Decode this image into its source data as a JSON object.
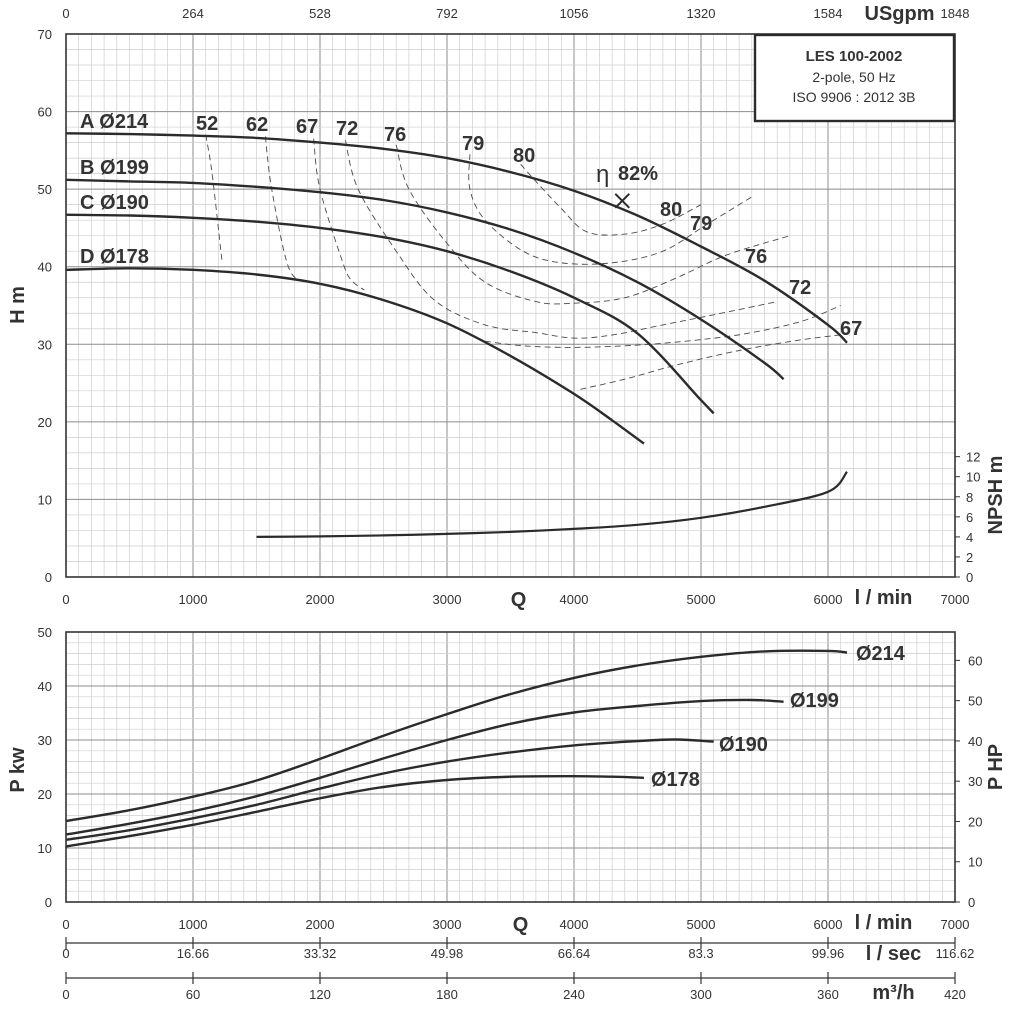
{
  "chart_data": [
    {
      "type": "line",
      "title": "LES 100-2002",
      "subtitle_lines": [
        "2-pole, 50 Hz",
        "ISO 9906 : 2012 3B"
      ],
      "xlabel": "Q",
      "x_unit": "l / min",
      "xlim": [
        0,
        7000
      ],
      "x_ticks": [
        0,
        1000,
        2000,
        3000,
        4000,
        5000,
        6000,
        7000
      ],
      "top_axis": {
        "unit": "USgpm",
        "ticks": [
          "0",
          "264",
          "528",
          "792",
          "1056",
          "1320",
          "1584",
          "1848"
        ]
      },
      "ylabel": "H m",
      "ylim": [
        0,
        70
      ],
      "y_ticks": [
        0,
        10,
        20,
        30,
        40,
        50,
        60,
        70
      ],
      "y2label": "NPSH m",
      "y2_ticks": [
        0,
        2,
        4,
        6,
        8,
        10,
        12
      ],
      "series": [
        {
          "name": "A Ø214",
          "x": [
            0,
            500,
            1000,
            1500,
            2000,
            2500,
            3000,
            3500,
            4000,
            4500,
            5000,
            5500,
            6000,
            6150
          ],
          "y": [
            57.2,
            57.1,
            56.9,
            56.6,
            56.0,
            55.2,
            54.0,
            52.2,
            49.8,
            46.6,
            42.6,
            38.2,
            32.5,
            30.2
          ]
        },
        {
          "name": "B Ø199",
          "x": [
            0,
            500,
            1000,
            1500,
            2000,
            2500,
            3000,
            3500,
            4000,
            4500,
            5000,
            5500,
            5650
          ],
          "y": [
            51.2,
            51.0,
            50.8,
            50.3,
            49.6,
            48.6,
            47.0,
            44.8,
            41.8,
            38.0,
            33.2,
            27.6,
            25.5
          ]
        },
        {
          "name": "C Ø190",
          "x": [
            0,
            500,
            1000,
            1500,
            2000,
            2500,
            3000,
            3500,
            4000,
            4500,
            5000,
            5100
          ],
          "y": [
            46.7,
            46.6,
            46.3,
            45.8,
            45.0,
            43.8,
            42.0,
            39.4,
            36.0,
            31.4,
            22.8,
            21.1
          ]
        },
        {
          "name": "D Ø178",
          "x": [
            0,
            500,
            1000,
            1500,
            2000,
            2500,
            3000,
            3500,
            4000,
            4300,
            4550
          ],
          "y": [
            39.6,
            39.8,
            39.6,
            39.0,
            37.8,
            35.7,
            32.7,
            28.5,
            23.6,
            20.2,
            17.2
          ]
        },
        {
          "name": "NPSH",
          "axis": "right",
          "x": [
            1500,
            2000,
            2500,
            3000,
            3500,
            4000,
            4500,
            5000,
            5500,
            6000,
            6150
          ],
          "y": [
            4.0,
            4.05,
            4.15,
            4.3,
            4.5,
            4.8,
            5.2,
            5.9,
            7.0,
            8.5,
            10.5
          ]
        }
      ],
      "efficiency_labels": [
        "52",
        "62",
        "67",
        "72",
        "76",
        "79",
        "80",
        "80",
        "79",
        "76",
        "72",
        "67"
      ],
      "best_efficiency": {
        "label": "η",
        "value": "82%",
        "x": 4380,
        "y": 48.5
      },
      "grid": true
    },
    {
      "type": "line",
      "xlabel": "Q",
      "x_unit": "l / min",
      "xlim": [
        0,
        7000
      ],
      "x_ticks": [
        0,
        1000,
        2000,
        3000,
        4000,
        5000,
        6000,
        7000
      ],
      "ylabel": "P kw",
      "ylim": [
        0,
        50
      ],
      "y_ticks": [
        0,
        10,
        20,
        30,
        40,
        50
      ],
      "y2label": "P HP",
      "y2_ticks": [
        0,
        10,
        20,
        30,
        40,
        50,
        60
      ],
      "series": [
        {
          "name": "Ø214",
          "x": [
            0,
            500,
            1000,
            1500,
            2000,
            2500,
            3000,
            3500,
            4000,
            4500,
            5000,
            5500,
            6000,
            6150
          ],
          "y": [
            15.0,
            17.0,
            19.5,
            22.5,
            26.5,
            30.8,
            34.8,
            38.5,
            41.5,
            43.8,
            45.4,
            46.4,
            46.5,
            46.2
          ]
        },
        {
          "name": "Ø199",
          "x": [
            0,
            500,
            1000,
            1500,
            2000,
            2500,
            3000,
            3500,
            4000,
            4500,
            5000,
            5400,
            5650
          ],
          "y": [
            12.5,
            14.5,
            16.8,
            19.6,
            23.0,
            26.6,
            30.0,
            33.0,
            35.1,
            36.3,
            37.2,
            37.4,
            37.1
          ]
        },
        {
          "name": "Ø190",
          "x": [
            0,
            500,
            1000,
            1500,
            2000,
            2500,
            3000,
            3500,
            4000,
            4500,
            4800,
            5100
          ],
          "y": [
            11.5,
            13.3,
            15.5,
            18.0,
            21.0,
            23.8,
            26.0,
            27.7,
            29.0,
            29.8,
            30.1,
            29.7
          ]
        },
        {
          "name": "Ø178",
          "x": [
            0,
            500,
            1000,
            1500,
            2000,
            2500,
            3000,
            3500,
            4000,
            4300,
            4550
          ],
          "y": [
            10.3,
            12.2,
            14.3,
            16.7,
            19.2,
            21.3,
            22.6,
            23.2,
            23.3,
            23.2,
            23.0
          ]
        }
      ],
      "extra_x_axes": [
        {
          "unit": "l / sec",
          "ticks": [
            "0",
            "16.66",
            "33.32",
            "49.98",
            "66.64",
            "83.3",
            "99.96",
            "116.62"
          ]
        },
        {
          "unit": "m³/h",
          "ticks": [
            "0",
            "60",
            "120",
            "180",
            "240",
            "300",
            "360",
            "420"
          ]
        }
      ],
      "grid": true
    }
  ]
}
